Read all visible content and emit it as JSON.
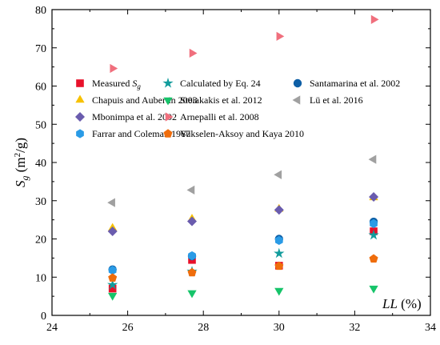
{
  "chart_data": {
    "type": "scatter",
    "xlabel": "LL (%)",
    "ylabel": "Sg (m2/g)",
    "xlim": [
      24,
      34
    ],
    "ylim": [
      0,
      80
    ],
    "x_ticks": [
      24,
      26,
      28,
      30,
      32,
      34
    ],
    "y_ticks": [
      0,
      10,
      20,
      30,
      40,
      50,
      60,
      70,
      80
    ],
    "grid": false,
    "legend_position": "center-left",
    "series": [
      {
        "name": "Measured Sg",
        "marker": "square",
        "color": "#e8112a",
        "x": [
          25.6,
          27.7,
          30.0,
          32.5
        ],
        "y": [
          7.0,
          14.5,
          13.0,
          22.0
        ]
      },
      {
        "name": "Calculated by Eq. 24",
        "marker": "star",
        "color": "#129c9c",
        "x": [
          25.6,
          27.7,
          30.0,
          32.5
        ],
        "y": [
          8.0,
          11.5,
          16.2,
          21.0
        ]
      },
      {
        "name": "Santamarina et al. 2002",
        "marker": "circle",
        "color": "#0e5fa6",
        "x": [
          25.6,
          27.7,
          30.0,
          32.5
        ],
        "y": [
          12.0,
          15.5,
          20.0,
          24.5
        ]
      },
      {
        "name": "Chapuis and Aubertin 2003",
        "marker": "triangle-up",
        "color": "#f7c100",
        "x": [
          25.6,
          27.7,
          30.0,
          32.5
        ],
        "y": [
          22.8,
          25.2,
          27.8,
          30.8
        ]
      },
      {
        "name": "Steiakakis et al. 2012",
        "marker": "triangle-down",
        "color": "#16c46a",
        "x": [
          25.6,
          27.7,
          30.0,
          32.5
        ],
        "y": [
          5.2,
          5.9,
          6.5,
          7.1
        ]
      },
      {
        "name": "Lü et al. 2016",
        "marker": "triangle-left",
        "color": "#a0a0a0",
        "x": [
          25.6,
          27.7,
          30.0,
          32.5
        ],
        "y": [
          29.5,
          32.8,
          36.8,
          40.8
        ]
      },
      {
        "name": "Mbonimpa et al. 2002",
        "marker": "diamond",
        "color": "#6a5cae",
        "x": [
          25.6,
          27.7,
          30.0,
          32.5
        ],
        "y": [
          22.0,
          24.6,
          27.6,
          31.0
        ]
      },
      {
        "name": "Arnepalli et al. 2008",
        "marker": "triangle-right",
        "color": "#f06f7d",
        "x": [
          25.6,
          27.7,
          30.0,
          32.5
        ],
        "y": [
          64.6,
          68.6,
          73.0,
          77.4
        ]
      },
      {
        "name": "Farrar and Coleman 1967",
        "marker": "hexagon",
        "color": "#2a9be6",
        "x": [
          25.6,
          27.7,
          30.0,
          32.5
        ],
        "y": [
          11.8,
          15.6,
          19.6,
          24.0
        ]
      },
      {
        "name": "Yukselen-Aksoy and Kaya 2010",
        "marker": "pentagon",
        "color": "#ef6d0c",
        "x": [
          25.6,
          27.7,
          30.0,
          32.5
        ],
        "y": [
          9.8,
          11.2,
          12.9,
          14.8
        ]
      }
    ],
    "legend_rows": [
      [
        "Measured Sg",
        "Calculated by Eq. 24",
        "Santamarina et al. 2002"
      ],
      [
        "Chapuis and Aubertin 2003",
        "Steiakakis et al. 2012",
        "Lü et al. 2016"
      ],
      [
        "Mbonimpa et al. 2002",
        "Arnepalli et al. 2008"
      ],
      [
        "Farrar and Coleman 1967",
        "Yukselen-Aksoy and Kaya 2010"
      ]
    ]
  }
}
